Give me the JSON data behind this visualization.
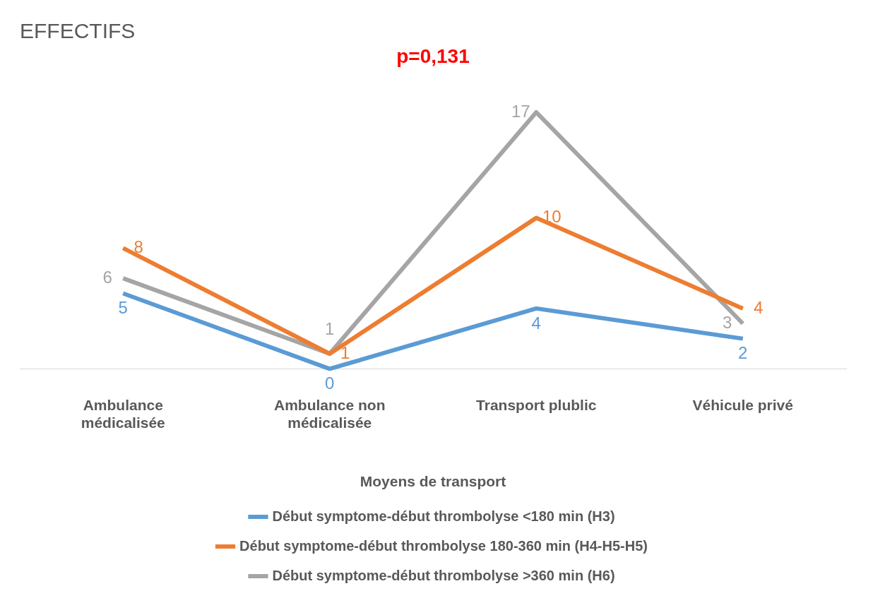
{
  "chart_data": {
    "type": "line",
    "title": "EFFECTIFS",
    "subtitle": "p=0,131",
    "xlabel": "Moyens de transport",
    "categories": [
      "Ambulance médicalisée",
      "Ambulance non médicalisée",
      "Transport plublic",
      "Véhicule privé"
    ],
    "series": [
      {
        "name": "Début symptome-début thrombolyse <180 min (H3)",
        "color": "#5b9bd5",
        "values": [
          5,
          0,
          4,
          2
        ]
      },
      {
        "name": "Début symptome-début thrombolyse 180-360 min (H4-H5-H5)",
        "color": "#ed7d31",
        "values": [
          8,
          1,
          10,
          4
        ]
      },
      {
        "name": "Début symptome-début thrombolyse >360 min (H6)",
        "color": "#a5a5a5",
        "values": [
          6,
          1,
          17,
          3
        ]
      }
    ],
    "data_labels": true,
    "legend": "bottom",
    "grid": false,
    "marker": "none",
    "line_style": "solid",
    "tick_labels": "x"
  }
}
